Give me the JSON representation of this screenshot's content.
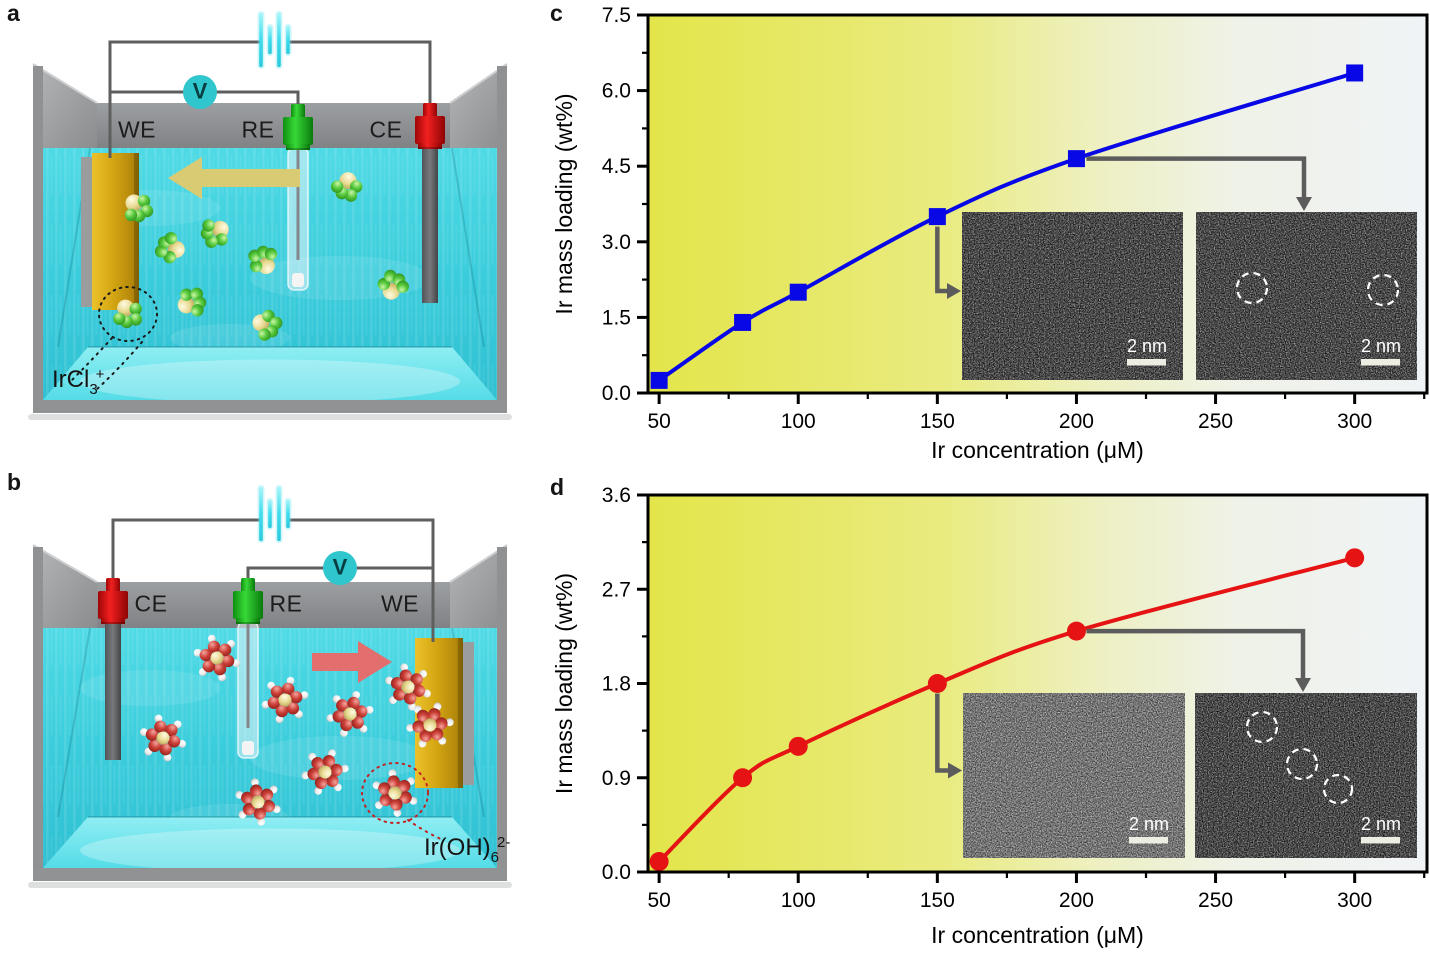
{
  "panel_letters": [
    "a",
    "b",
    "c",
    "d"
  ],
  "diagram_a": {
    "electrodes": [
      {
        "label": "WE"
      },
      {
        "label": "RE"
      },
      {
        "label": "CE"
      }
    ],
    "voltmeter_label": "V",
    "species": {
      "base": "IrCl",
      "sub": "3",
      "sup": "+"
    },
    "arrow_direction": "left",
    "arrow_color": "#d9cb74",
    "annotation_color": "#1a1a1a"
  },
  "diagram_b": {
    "electrodes": [
      {
        "label": "CE"
      },
      {
        "label": "RE"
      },
      {
        "label": "WE"
      }
    ],
    "voltmeter_label": "V",
    "species": {
      "base": "Ir(OH)",
      "sub": "6",
      "sup": "2-"
    },
    "arrow_direction": "right",
    "arrow_color": "#e26e6e",
    "annotation_color": "#c42222"
  },
  "chart_data": [
    {
      "id": "c",
      "type": "line",
      "x": [
        50,
        80,
        100,
        150,
        200,
        300
      ],
      "values": [
        0.25,
        1.4,
        2.0,
        3.5,
        4.65,
        6.35
      ],
      "series_color": "#0808e6",
      "marker": "square",
      "title": "",
      "xlabel": "Ir concentration (μM)",
      "ylabel": "Ir mass loading (wt%)",
      "xlim": [
        46,
        326
      ],
      "ylim": [
        0,
        7.5
      ],
      "xticks": [
        50,
        100,
        150,
        200,
        250,
        300
      ],
      "xtick_labels": [
        "50",
        "100",
        "150",
        "200",
        "250",
        "300"
      ],
      "yticks": [
        0,
        1.5,
        3.0,
        4.5,
        6.0,
        7.5
      ],
      "ytick_labels": [
        "0.0",
        "1.5",
        "3.0",
        "4.5",
        "6.0",
        "7.5"
      ],
      "grid": false,
      "legend": null,
      "background_gradient": [
        "#e3e54a",
        "#eff3f6"
      ],
      "insets": [
        {
          "position": "left",
          "scale_bar_label": "2 nm",
          "dashed_circles": 0,
          "callout_from_x": 150
        },
        {
          "position": "right",
          "scale_bar_label": "2 nm",
          "dashed_circles": 2,
          "callout_from_x": 200
        }
      ]
    },
    {
      "id": "d",
      "type": "line",
      "x": [
        50,
        80,
        100,
        150,
        200,
        300
      ],
      "values": [
        0.1,
        0.9,
        1.2,
        1.8,
        2.3,
        3.0
      ],
      "series_color": "#e51313",
      "marker": "circle",
      "title": "",
      "xlabel": "Ir concentration (μM)",
      "ylabel": "Ir mass loading (wt%)",
      "xlim": [
        46,
        326
      ],
      "ylim": [
        0,
        3.6
      ],
      "xticks": [
        50,
        100,
        150,
        200,
        250,
        300
      ],
      "xtick_labels": [
        "50",
        "100",
        "150",
        "200",
        "250",
        "300"
      ],
      "yticks": [
        0,
        0.9,
        1.8,
        2.7,
        3.6
      ],
      "ytick_labels": [
        "0.0",
        "0.9",
        "1.8",
        "2.7",
        "3.6"
      ],
      "grid": false,
      "legend": null,
      "background_gradient": [
        "#e3e54a",
        "#eff3f6"
      ],
      "insets": [
        {
          "position": "left",
          "scale_bar_label": "2 nm",
          "dashed_circles": 0,
          "callout_from_x": 150
        },
        {
          "position": "right",
          "scale_bar_label": "2 nm",
          "dashed_circles": 3,
          "callout_from_x": 200
        }
      ]
    }
  ]
}
